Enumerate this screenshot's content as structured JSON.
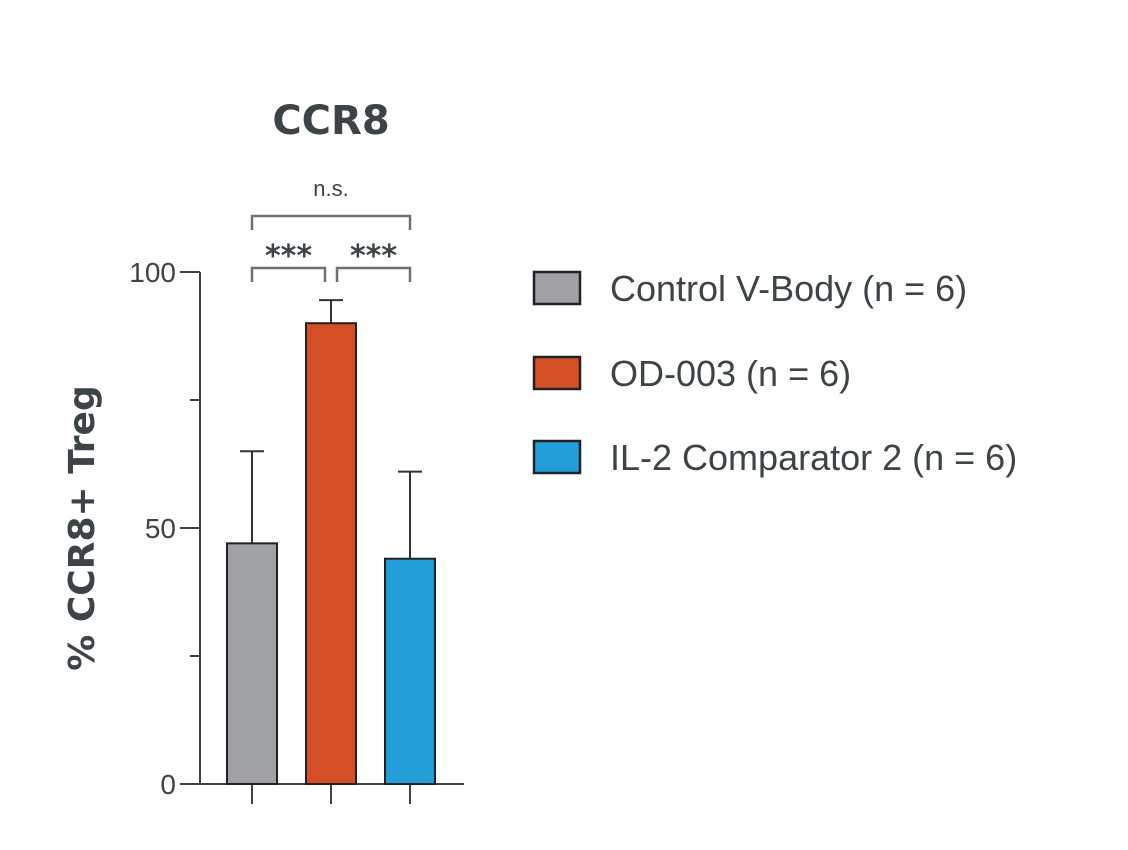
{
  "chart_data": {
    "type": "bar",
    "title": "CCR8",
    "ylabel": "% CCR8+ Treg",
    "xlabel": "",
    "ylim": [
      0,
      100
    ],
    "yticks": [
      0,
      50,
      100
    ],
    "yminor_ticks": [
      25,
      75
    ],
    "categories": [
      "Control V-Body (n = 6)",
      "OD-003 (n = 6)",
      "IL-2 Comparator 2 (n = 6)"
    ],
    "values": [
      47,
      90,
      44
    ],
    "errors": [
      18,
      4.5,
      17
    ],
    "colors": [
      "#a0a1a5",
      "#d44e26",
      "#239ed8"
    ],
    "legend_position": "right",
    "annotations": [
      {
        "from": 0,
        "to": 1,
        "label": "***",
        "style": "sig"
      },
      {
        "from": 1,
        "to": 2,
        "label": "***",
        "style": "sig"
      },
      {
        "from": 0,
        "to": 2,
        "label": "n.s.",
        "style": "ns"
      }
    ]
  }
}
